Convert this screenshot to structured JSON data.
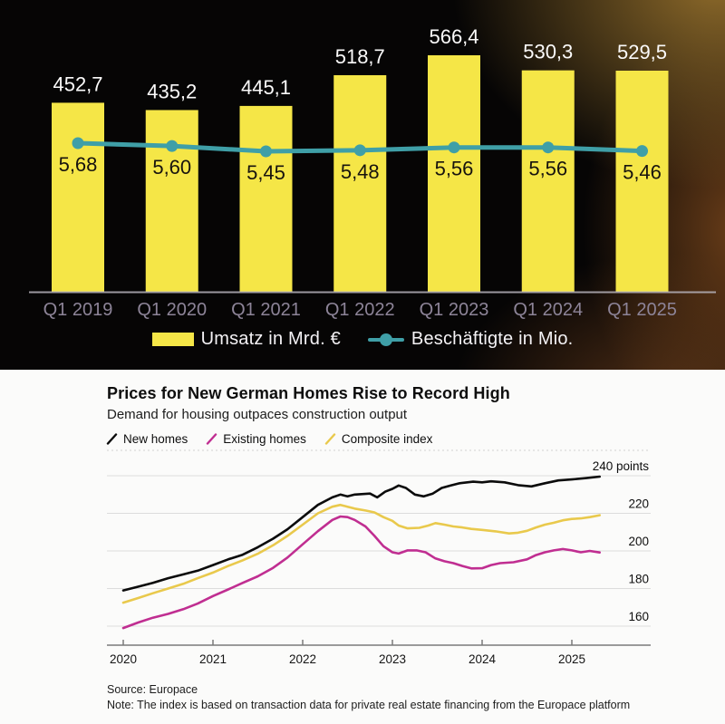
{
  "top_chart_legend": {
    "bar_label": "Umsatz in Mrd. €",
    "line_label": "Beschäftigte in Mio."
  },
  "chart_data": [
    {
      "type": "bar",
      "title": "",
      "categories": [
        "Q1 2019",
        "Q1 2020",
        "Q1 2021",
        "Q1 2022",
        "Q1 2023",
        "Q1 2024",
        "Q1 2025"
      ],
      "series": [
        {
          "type": "bar",
          "name": "Umsatz in Mrd. €",
          "values": [
            452.7,
            435.2,
            445.1,
            518.7,
            566.4,
            530.3,
            529.5
          ],
          "labels": [
            "452,7",
            "435,2",
            "445,1",
            "518,7",
            "566,4",
            "530,3",
            "529,5"
          ],
          "color": "#f5e647"
        },
        {
          "type": "line",
          "name": "Beschäftigte in Mio.",
          "values": [
            5.68,
            5.6,
            5.45,
            5.48,
            5.56,
            5.56,
            5.46
          ],
          "labels": [
            "5,68",
            "5,60",
            "5,45",
            "5,48",
            "5,56",
            "5,56",
            "5,46"
          ],
          "color": "#3f9fa7"
        }
      ],
      "ylim_bar": [
        0,
        600
      ],
      "ylim_line": [
        5.0,
        6.0
      ],
      "legend_position": "bottom",
      "grid": false,
      "colors": {
        "value_label_bar": "#fbfafa",
        "value_label_line": "#17130e",
        "axis_line": "#b6b2ba",
        "axis_label": "#8d8498"
      }
    },
    {
      "type": "line",
      "title": "Prices for New German Homes Rise to Record High",
      "subtitle": "Demand for housing outpaces construction output",
      "source": "Source: Europace",
      "note": "Note: The index is based on transaction data for private real estate financing from the Europace platform",
      "xlabel": "",
      "ylabel": "points",
      "ylim": [
        150,
        245
      ],
      "xlim": [
        2019.85,
        2025.9
      ],
      "grid": true,
      "legend_position": "top",
      "y_ticks": [
        {
          "value": 240,
          "label": "240 points"
        },
        {
          "value": 220,
          "label": "220"
        },
        {
          "value": 200,
          "label": "200"
        },
        {
          "value": 180,
          "label": "180"
        },
        {
          "value": 160,
          "label": "160"
        }
      ],
      "x_ticks": [
        {
          "value": 2020,
          "label": "2020"
        },
        {
          "value": 2021,
          "label": "2021"
        },
        {
          "value": 2022,
          "label": "2022"
        },
        {
          "value": 2023,
          "label": "2023"
        },
        {
          "value": 2024,
          "label": "2024"
        },
        {
          "value": 2025,
          "label": "2025"
        }
      ],
      "series": [
        {
          "name": "New homes",
          "color": "#0b0b0b",
          "points": [
            [
              2020,
              179
            ],
            [
              2020.17,
              181
            ],
            [
              2020.33,
              183
            ],
            [
              2020.5,
              185.5
            ],
            [
              2020.67,
              187.5
            ],
            [
              2020.83,
              189.5
            ],
            [
              2021,
              192.5
            ],
            [
              2021.17,
              195.5
            ],
            [
              2021.33,
              198
            ],
            [
              2021.5,
              202
            ],
            [
              2021.67,
              206.5
            ],
            [
              2021.83,
              211.5
            ],
            [
              2022,
              218
            ],
            [
              2022.17,
              224.5
            ],
            [
              2022.33,
              228.5
            ],
            [
              2022.42,
              230
            ],
            [
              2022.5,
              229
            ],
            [
              2022.58,
              230
            ],
            [
              2022.75,
              230.5
            ],
            [
              2022.83,
              228.5
            ],
            [
              2022.92,
              231.5
            ],
            [
              2023,
              233
            ],
            [
              2023.07,
              234.8
            ],
            [
              2023.15,
              233.5
            ],
            [
              2023.25,
              230
            ],
            [
              2023.35,
              229
            ],
            [
              2023.45,
              230.5
            ],
            [
              2023.55,
              233.5
            ],
            [
              2023.65,
              234.8
            ],
            [
              2023.75,
              236
            ],
            [
              2023.9,
              236.8
            ],
            [
              2024,
              236.5
            ],
            [
              2024.1,
              237
            ],
            [
              2024.25,
              236.5
            ],
            [
              2024.4,
              235
            ],
            [
              2024.55,
              234.3
            ],
            [
              2024.7,
              236
            ],
            [
              2024.85,
              237.5
            ],
            [
              2025,
              238
            ],
            [
              2025.15,
              238.7
            ],
            [
              2025.31,
              239.5
            ]
          ]
        },
        {
          "name": "Existing homes",
          "color": "#c02e91",
          "points": [
            [
              2020,
              159
            ],
            [
              2020.17,
              162
            ],
            [
              2020.33,
              164.5
            ],
            [
              2020.5,
              166.5
            ],
            [
              2020.67,
              169
            ],
            [
              2020.83,
              172
            ],
            [
              2021,
              176
            ],
            [
              2021.17,
              179.5
            ],
            [
              2021.33,
              183
            ],
            [
              2021.5,
              186.5
            ],
            [
              2021.67,
              191
            ],
            [
              2021.83,
              196.5
            ],
            [
              2022,
              203.5
            ],
            [
              2022.17,
              210.5
            ],
            [
              2022.33,
              216.5
            ],
            [
              2022.42,
              218.3
            ],
            [
              2022.5,
              218
            ],
            [
              2022.58,
              216.5
            ],
            [
              2022.7,
              213
            ],
            [
              2022.8,
              208
            ],
            [
              2022.9,
              202.5
            ],
            [
              2023,
              199.3
            ],
            [
              2023.07,
              198.6
            ],
            [
              2023.17,
              200.3
            ],
            [
              2023.27,
              200.3
            ],
            [
              2023.37,
              199.3
            ],
            [
              2023.48,
              196
            ],
            [
              2023.58,
              194.5
            ],
            [
              2023.68,
              193.5
            ],
            [
              2023.78,
              192
            ],
            [
              2023.88,
              190.7
            ],
            [
              2024,
              190.8
            ],
            [
              2024.1,
              192.5
            ],
            [
              2024.2,
              193.5
            ],
            [
              2024.35,
              194
            ],
            [
              2024.5,
              195.5
            ],
            [
              2024.6,
              197.8
            ],
            [
              2024.7,
              199.3
            ],
            [
              2024.8,
              200.3
            ],
            [
              2024.9,
              201
            ],
            [
              2025,
              200.3
            ],
            [
              2025.1,
              199.3
            ],
            [
              2025.2,
              200
            ],
            [
              2025.31,
              199.2
            ]
          ]
        },
        {
          "name": "Composite index",
          "color": "#e9c94c",
          "points": [
            [
              2020,
              172.5
            ],
            [
              2020.17,
              175
            ],
            [
              2020.33,
              177.5
            ],
            [
              2020.5,
              180
            ],
            [
              2020.67,
              182.5
            ],
            [
              2020.83,
              185.5
            ],
            [
              2021,
              188.5
            ],
            [
              2021.17,
              192
            ],
            [
              2021.33,
              195
            ],
            [
              2021.5,
              198.5
            ],
            [
              2021.67,
              203
            ],
            [
              2021.83,
              208
            ],
            [
              2022,
              214
            ],
            [
              2022.17,
              220
            ],
            [
              2022.33,
              223.5
            ],
            [
              2022.42,
              224.5
            ],
            [
              2022.5,
              223.5
            ],
            [
              2022.58,
              222.5
            ],
            [
              2022.7,
              221.5
            ],
            [
              2022.8,
              220.5
            ],
            [
              2022.9,
              218
            ],
            [
              2023,
              216
            ],
            [
              2023.07,
              213.5
            ],
            [
              2023.17,
              212
            ],
            [
              2023.3,
              212.3
            ],
            [
              2023.4,
              213.5
            ],
            [
              2023.48,
              214.8
            ],
            [
              2023.58,
              214
            ],
            [
              2023.68,
              213
            ],
            [
              2023.78,
              212.5
            ],
            [
              2023.88,
              211.7
            ],
            [
              2024,
              211.2
            ],
            [
              2024.15,
              210.4
            ],
            [
              2024.3,
              209.3
            ],
            [
              2024.4,
              209.7
            ],
            [
              2024.5,
              210.7
            ],
            [
              2024.6,
              212.5
            ],
            [
              2024.7,
              214
            ],
            [
              2024.8,
              215
            ],
            [
              2024.9,
              216.3
            ],
            [
              2025,
              217
            ],
            [
              2025.1,
              217.3
            ],
            [
              2025.2,
              218
            ],
            [
              2025.31,
              219
            ]
          ]
        }
      ],
      "colors": {
        "gridline": "#dcdcdc",
        "axis_line": "#7a7a7a",
        "tick_label": "#141414"
      }
    }
  ]
}
